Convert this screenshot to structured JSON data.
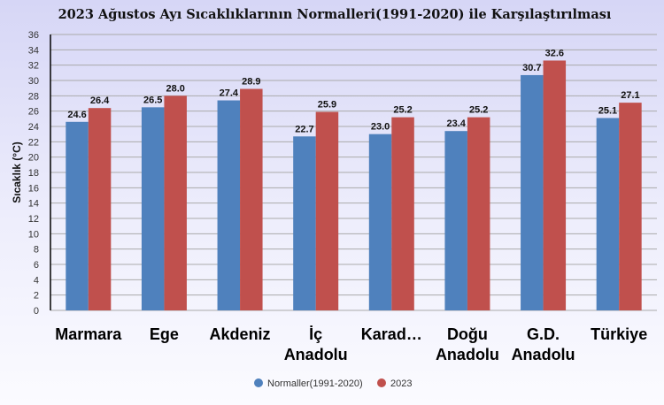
{
  "chart_data": {
    "type": "bar",
    "title": "2023 Ağustos Ayı Sıcaklıklarının Normalleri(1991-2020) ile Karşılaştırılması",
    "ylabel": "Sıcaklık (°C)",
    "xlabel": "",
    "ylim": [
      0,
      36
    ],
    "yticks": [
      0,
      2,
      4,
      6,
      8,
      10,
      12,
      14,
      16,
      18,
      20,
      22,
      24,
      26,
      28,
      30,
      32,
      34,
      36
    ],
    "grid": true,
    "legend": "bottom",
    "categories": [
      [
        "Marmara"
      ],
      [
        "Ege"
      ],
      [
        "Akdeniz"
      ],
      [
        "İç",
        "Anadolu"
      ],
      [
        "Karad…"
      ],
      [
        "Doğu",
        "Anadolu"
      ],
      [
        "G.D.",
        "Anadolu"
      ],
      [
        "Türkiye"
      ]
    ],
    "series": [
      {
        "name": "Normaller(1991-2020)",
        "color": "#4f81bd",
        "values": [
          24.6,
          26.5,
          27.4,
          22.7,
          23.0,
          23.4,
          30.7,
          25.1
        ]
      },
      {
        "name": "2023",
        "color": "#c0504d",
        "values": [
          26.4,
          28.0,
          28.9,
          25.9,
          25.2,
          25.2,
          32.6,
          27.1
        ]
      }
    ]
  }
}
